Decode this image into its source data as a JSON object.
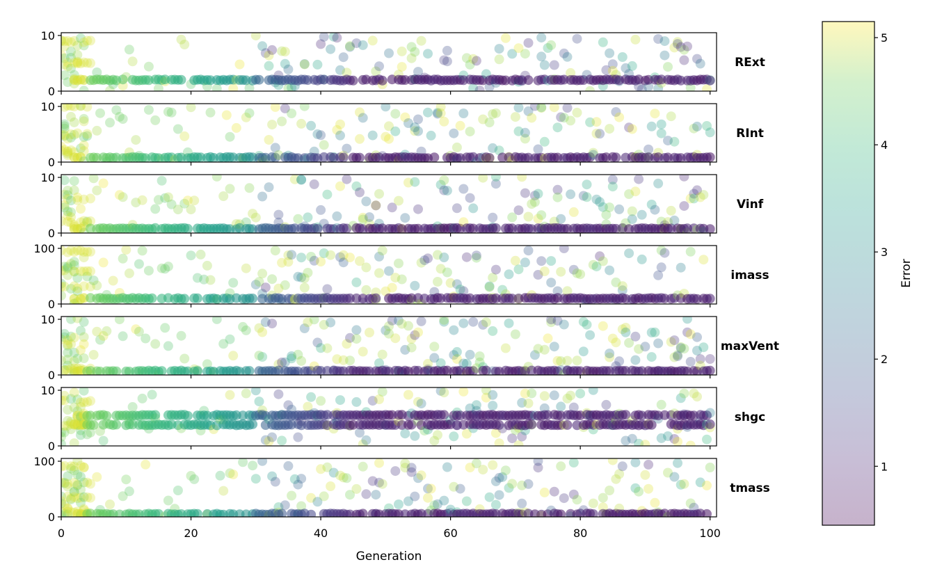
{
  "chart_data": {
    "type": "scatter",
    "xlabel": "Generation",
    "xlim": [
      0,
      101
    ],
    "x_ticks": [
      0,
      20,
      40,
      60,
      80,
      100
    ],
    "colorbar": {
      "label": "Error",
      "range": [
        0.45,
        5.15
      ],
      "ticks": [
        1,
        2,
        3,
        4,
        5
      ],
      "colormap": "viridis",
      "alpha": 0.3
    },
    "marker_alpha": 0.3,
    "panels": [
      {
        "label": "RExt",
        "ylim": [
          0,
          10.5
        ],
        "yticks": [
          0,
          10
        ],
        "bands": [
          2.0
        ],
        "best_value": 1.8,
        "early_clusters": [
          5,
          9
        ]
      },
      {
        "label": "RInt",
        "ylim": [
          0,
          10.5
        ],
        "yticks": [
          0,
          10
        ],
        "bands": [
          0.8
        ],
        "best_value": 0.7,
        "early_clusters": [
          5,
          10,
          2
        ]
      },
      {
        "label": "Vinf",
        "ylim": [
          0,
          10.5
        ],
        "yticks": [
          0,
          10
        ],
        "bands": [
          0.8
        ],
        "best_value": 0.8,
        "early_clusters": [
          2,
          6
        ]
      },
      {
        "label": "imass",
        "ylim": [
          0,
          105
        ],
        "yticks": [
          0,
          100
        ],
        "bands": [
          10
        ],
        "best_value": 10,
        "early_clusters": [
          30,
          60,
          95
        ]
      },
      {
        "label": "maxVent",
        "ylim": [
          0,
          10.5
        ],
        "yticks": [
          0,
          10
        ],
        "bands": [
          0.7
        ],
        "best_value": 0.5,
        "early_clusters": [
          1
        ]
      },
      {
        "label": "shgc",
        "ylim": [
          0,
          10.5
        ],
        "yticks": [
          0,
          10
        ],
        "bands": [
          3.8,
          5.5
        ],
        "best_value": 5.5,
        "early_clusters": [
          3.8,
          8
        ]
      },
      {
        "label": "tmass",
        "ylim": [
          0,
          105
        ],
        "yticks": [
          0,
          100
        ],
        "bands": [
          5
        ],
        "best_value": 5,
        "early_clusters": [
          10,
          35,
          60,
          90
        ]
      }
    ]
  }
}
